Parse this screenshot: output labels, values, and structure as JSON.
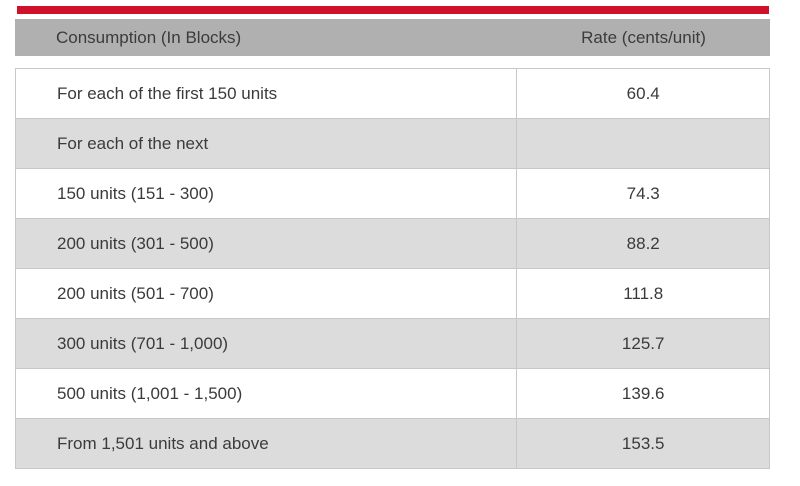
{
  "colors": {
    "accent_red": "#d0112b",
    "header_bg": "#b0b0b0",
    "alt_row_bg": "#dcdcdc",
    "row_bg": "#ffffff",
    "border": "#c8c8c8",
    "text": "#3b3b3b"
  },
  "table": {
    "columns": [
      "Consumption (In Blocks)",
      "Rate (cents/unit)"
    ],
    "rows": [
      {
        "consumption": "For each of the first 150 units",
        "rate": "60.4"
      },
      {
        "consumption": "For each of the next",
        "rate": ""
      },
      {
        "consumption": "150 units (151 - 300)",
        "rate": "74.3"
      },
      {
        "consumption": "200 units (301 - 500)",
        "rate": "88.2"
      },
      {
        "consumption": "200 units (501 - 700)",
        "rate": "111.8"
      },
      {
        "consumption": "300 units (701 - 1,000)",
        "rate": "125.7"
      },
      {
        "consumption": "500 units (1,001 - 1,500)",
        "rate": "139.6"
      },
      {
        "consumption": "From 1,501 units and above",
        "rate": "153.5"
      }
    ]
  },
  "chart_data": {
    "type": "table",
    "title": "",
    "columns": [
      "Consumption (In Blocks)",
      "Rate (cents/unit)"
    ],
    "rows": [
      [
        "For each of the first 150 units",
        60.4
      ],
      [
        "For each of the next",
        null
      ],
      [
        "150 units (151 - 300)",
        74.3
      ],
      [
        "200 units (301 - 500)",
        88.2
      ],
      [
        "200 units (501 - 700)",
        111.8
      ],
      [
        "300 units (701 - 1,000)",
        125.7
      ],
      [
        "500 units (1,001 - 1,500)",
        139.6
      ],
      [
        "From 1,501 units and above",
        153.5
      ]
    ]
  }
}
